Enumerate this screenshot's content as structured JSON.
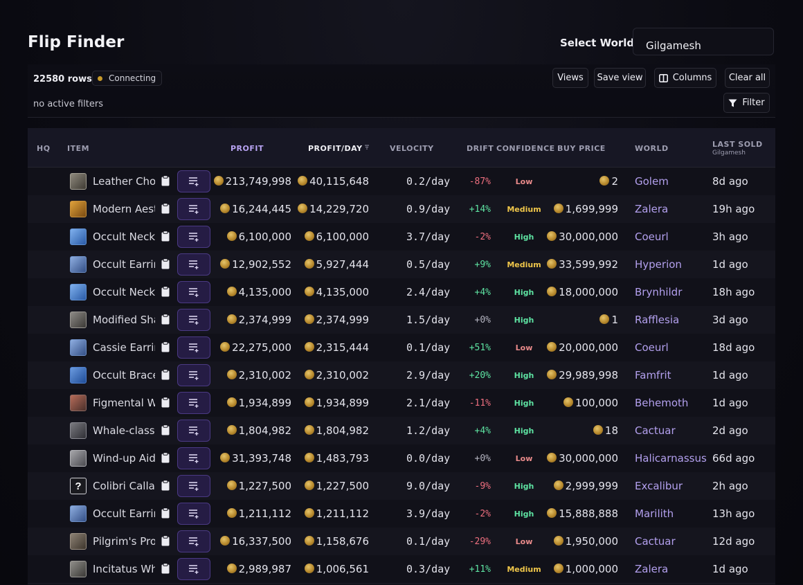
{
  "page": {
    "title": "Flip Finder"
  },
  "world_selector": {
    "label": "Select World:",
    "value": "Gilgamesh"
  },
  "toolbar": {
    "rows_count": "22580 rows",
    "status": "Connecting",
    "filters_text": "no active filters",
    "views_label": "Views",
    "save_view_label": "Save view",
    "columns_label": "Columns",
    "clear_all_label": "Clear all",
    "filter_label": "Filter"
  },
  "colors": {
    "accent": "#b9a4f4",
    "positive": "#5ee3a2",
    "negative": "#ee6f7f",
    "medium": "#efc64a",
    "status_dot": "#c79a2a"
  },
  "table": {
    "headers": {
      "hq": "HQ",
      "item": "ITEM",
      "profit": "PROFIT",
      "profit_day": "PROFIT/DAY",
      "velocity": "VELOCITY",
      "drift": "DRIFT",
      "confidence": "CONFIDENCE",
      "buy_price": "BUY PRICE",
      "world": "WORLD",
      "last_sold": "LAST SOLD",
      "last_sold_sub": "Gilgamesh"
    },
    "rows": [
      {
        "icon": "collar-icon",
        "item": "Leather Choker",
        "profit": "213,749,998",
        "profit_day": "40,115,648",
        "velocity": "0.2/day",
        "drift": "-87%",
        "confidence": "Low",
        "buy_price": "2",
        "world": "Golem",
        "last_sold": "8d ago"
      },
      {
        "icon": "painting-icon",
        "item": "Modern Aesthetics",
        "profit": "16,244,445",
        "profit_day": "14,229,720",
        "velocity": "0.9/day",
        "drift": "+14%",
        "confidence": "Medium",
        "buy_price": "1,699,999",
        "world": "Zalera",
        "last_sold": "19h ago"
      },
      {
        "icon": "necklace-icon",
        "item": "Occult Necklace",
        "profit": "6,100,000",
        "profit_day": "6,100,000",
        "velocity": "3.7/day",
        "drift": "-2%",
        "confidence": "High",
        "buy_price": "30,000,000",
        "world": "Coeurl",
        "last_sold": "3h ago"
      },
      {
        "icon": "earring-icon",
        "item": "Occult Earrings",
        "profit": "12,902,552",
        "profit_day": "5,927,444",
        "velocity": "0.5/day",
        "drift": "+9%",
        "confidence": "Medium",
        "buy_price": "33,599,992",
        "world": "Hyperion",
        "last_sold": "1d ago"
      },
      {
        "icon": "necklace-icon",
        "item": "Occult Necklace",
        "profit": "4,135,000",
        "profit_day": "4,135,000",
        "velocity": "2.4/day",
        "drift": "+4%",
        "confidence": "High",
        "buy_price": "18,000,000",
        "world": "Brynhildr",
        "last_sold": "18h ago"
      },
      {
        "icon": "feather-icon",
        "item": "Modified Shark",
        "profit": "2,374,999",
        "profit_day": "2,374,999",
        "velocity": "1.5/day",
        "drift": "+0%",
        "confidence": "High",
        "buy_price": "1",
        "world": "Rafflesia",
        "last_sold": "3d ago"
      },
      {
        "icon": "earring-icon",
        "item": "Cassie Earrings",
        "profit": "22,275,000",
        "profit_day": "2,315,444",
        "velocity": "0.1/day",
        "drift": "+51%",
        "confidence": "Low",
        "buy_price": "20,000,000",
        "world": "Coeurl",
        "last_sold": "18d ago"
      },
      {
        "icon": "bracelet-icon",
        "item": "Occult Bracelet",
        "profit": "2,310,002",
        "profit_day": "2,310,002",
        "velocity": "2.9/day",
        "drift": "+20%",
        "confidence": "High",
        "buy_price": "29,989,998",
        "world": "Famfrit",
        "last_sold": "1d ago"
      },
      {
        "icon": "weapon-icon",
        "item": "Figmental Weapon",
        "profit": "1,934,899",
        "profit_day": "1,934,899",
        "velocity": "2.1/day",
        "drift": "-11%",
        "confidence": "High",
        "buy_price": "100,000",
        "world": "Behemoth",
        "last_sold": "1d ago"
      },
      {
        "icon": "whale-icon",
        "item": "Whale-class Barding",
        "profit": "1,804,982",
        "profit_day": "1,804,982",
        "velocity": "1.2/day",
        "drift": "+4%",
        "confidence": "High",
        "buy_price": "18",
        "world": "Cactuar",
        "last_sold": "2d ago"
      },
      {
        "icon": "minion-icon",
        "item": "Wind-up Aide",
        "profit": "31,393,748",
        "profit_day": "1,483,793",
        "velocity": "0.0/day",
        "drift": "+0%",
        "confidence": "Low",
        "buy_price": "30,000,000",
        "world": "Halicarnassus",
        "last_sold": "66d ago"
      },
      {
        "icon": "unknown-icon",
        "item": "Colibri Callacas",
        "profit": "1,227,500",
        "profit_day": "1,227,500",
        "velocity": "9.0/day",
        "drift": "-9%",
        "confidence": "High",
        "buy_price": "2,999,999",
        "world": "Excalibur",
        "last_sold": "2h ago"
      },
      {
        "icon": "earring-icon",
        "item": "Occult Earrings",
        "profit": "1,211,112",
        "profit_day": "1,211,112",
        "velocity": "3.9/day",
        "drift": "-2%",
        "confidence": "High",
        "buy_price": "15,888,888",
        "world": "Marilith",
        "last_sold": "13h ago"
      },
      {
        "icon": "staff-icon",
        "item": "Pilgrim's Prowess",
        "profit": "16,337,500",
        "profit_day": "1,158,676",
        "velocity": "0.1/day",
        "drift": "-29%",
        "confidence": "Low",
        "buy_price": "1,950,000",
        "world": "Cactuar",
        "last_sold": "12d ago"
      },
      {
        "icon": "whistle-icon",
        "item": "Incitatus Whistle",
        "profit": "2,989,987",
        "profit_day": "1,006,561",
        "velocity": "0.3/day",
        "drift": "+11%",
        "confidence": "Medium",
        "buy_price": "1,000,000",
        "world": "Zalera",
        "last_sold": "1d ago"
      }
    ]
  }
}
